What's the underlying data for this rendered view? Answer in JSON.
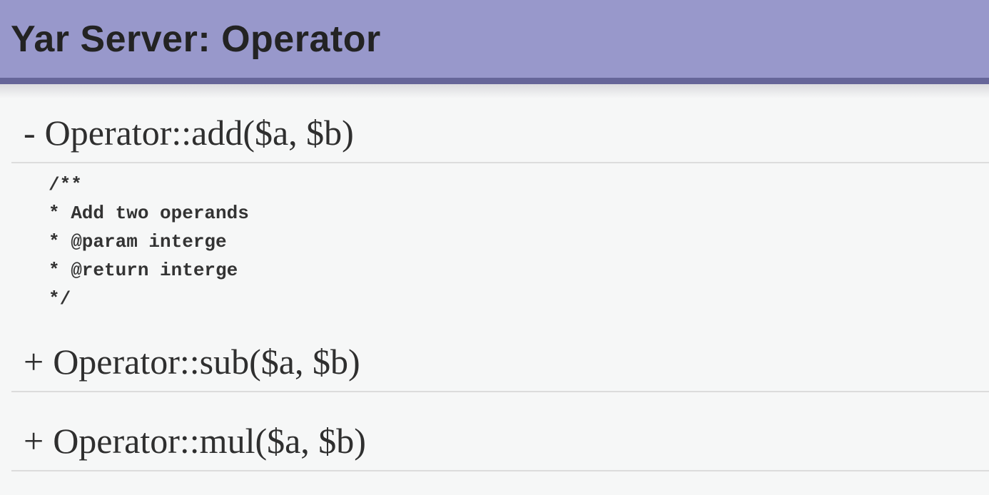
{
  "header": {
    "title": "Yar Server: Operator"
  },
  "theme": {
    "header_bg": "#9898cb",
    "header_border": "#666699",
    "page_bg": "#f6f7f7",
    "divider": "#dcdcdc",
    "heading_color": "#2f2f2f",
    "code_color": "#333333",
    "title_color": "#232323"
  },
  "methods": [
    {
      "toggle_sign": "-",
      "state": "expanded",
      "signature": "Operator::add($a, $b)",
      "doc_lines": [
        "/**",
        "* Add two operands",
        "* @param interge",
        "* @return interge",
        "*/"
      ]
    },
    {
      "toggle_sign": "+",
      "state": "collapsed",
      "signature": "Operator::sub($a, $b)"
    },
    {
      "toggle_sign": "+",
      "state": "collapsed",
      "signature": "Operator::mul($a, $b)"
    }
  ]
}
